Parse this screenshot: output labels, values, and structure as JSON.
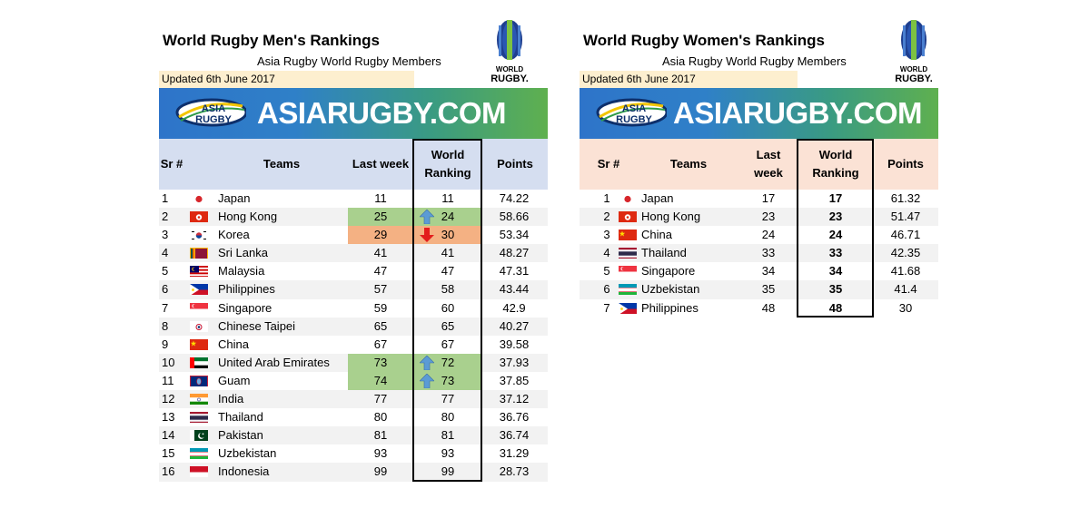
{
  "men": {
    "title": "World Rugby Men's Rankings",
    "subtitle": "Asia Rugby  World Rugby Members",
    "updated": "Updated  6th June 2017",
    "logo_text_1": "WORLD",
    "logo_text_2": "RUGBY.",
    "banner_logo_1": "ASIA",
    "banner_logo_2": "RUGBY",
    "banner_site": "ASIARUGBY.COM",
    "headers": {
      "sr": "Sr #",
      "teams": "Teams",
      "last_week": "Last week",
      "world_ranking_1": "World",
      "world_ranking_2": "Ranking",
      "points": "Points"
    },
    "rows": [
      {
        "sr": "1",
        "flag": "japan-flag",
        "team": "Japan",
        "last": "11",
        "rank": "11",
        "points": "74.22",
        "trend": ""
      },
      {
        "sr": "2",
        "flag": "hong-kong-flag",
        "team": "Hong Kong",
        "last": "25",
        "rank": "24",
        "points": "58.66",
        "trend": "up"
      },
      {
        "sr": "3",
        "flag": "korea-flag",
        "team": "Korea",
        "last": "29",
        "rank": "30",
        "points": "53.34",
        "trend": "down"
      },
      {
        "sr": "4",
        "flag": "sri-lanka-flag",
        "team": "Sri Lanka",
        "last": "41",
        "rank": "41",
        "points": "48.27",
        "trend": ""
      },
      {
        "sr": "5",
        "flag": "malaysia-flag",
        "team": "Malaysia",
        "last": "47",
        "rank": "47",
        "points": "47.31",
        "trend": ""
      },
      {
        "sr": "6",
        "flag": "philippines-flag",
        "team": "Philippines",
        "last": "57",
        "rank": "58",
        "points": "43.44",
        "trend": ""
      },
      {
        "sr": "7",
        "flag": "singapore-flag",
        "team": "Singapore",
        "last": "59",
        "rank": "60",
        "points": "42.9",
        "trend": ""
      },
      {
        "sr": "8",
        "flag": "chinese-taipei-flag",
        "team": "Chinese Taipei",
        "last": "65",
        "rank": "65",
        "points": "40.27",
        "trend": ""
      },
      {
        "sr": "9",
        "flag": "china-flag",
        "team": "China",
        "last": "67",
        "rank": "67",
        "points": "39.58",
        "trend": ""
      },
      {
        "sr": "10",
        "flag": "uae-flag",
        "team": "United Arab Emirates",
        "last": "73",
        "rank": "72",
        "points": "37.93",
        "trend": "up"
      },
      {
        "sr": "11",
        "flag": "guam-flag",
        "team": "Guam",
        "last": "74",
        "rank": "73",
        "points": "37.85",
        "trend": "up"
      },
      {
        "sr": "12",
        "flag": "india-flag",
        "team": "India",
        "last": "77",
        "rank": "77",
        "points": "37.12",
        "trend": ""
      },
      {
        "sr": "13",
        "flag": "thailand-flag",
        "team": "Thailand",
        "last": "80",
        "rank": "80",
        "points": "36.76",
        "trend": ""
      },
      {
        "sr": "14",
        "flag": "pakistan-flag",
        "team": "Pakistan",
        "last": "81",
        "rank": "81",
        "points": "36.74",
        "trend": ""
      },
      {
        "sr": "15",
        "flag": "uzbekistan-flag",
        "team": "Uzbekistan",
        "last": "93",
        "rank": "93",
        "points": "31.29",
        "trend": ""
      },
      {
        "sr": "16",
        "flag": "indonesia-flag",
        "team": "Indonesia",
        "last": "99",
        "rank": "99",
        "points": "28.73",
        "trend": ""
      }
    ]
  },
  "women": {
    "title": "World Rugby Women's Rankings",
    "subtitle": "Asia Rugby  World Rugby Members",
    "updated": "Updated  6th June 2017",
    "logo_text_1": "WORLD",
    "logo_text_2": "RUGBY.",
    "banner_logo_1": "ASIA",
    "banner_logo_2": "RUGBY",
    "banner_site": "ASIARUGBY.COM",
    "headers": {
      "sr": "Sr #",
      "teams": "Teams",
      "last_week_1": "Last",
      "last_week_2": "week",
      "world_ranking_1": "World",
      "world_ranking_2": "Ranking",
      "points": "Points"
    },
    "rows": [
      {
        "sr": "1",
        "flag": "japan-flag",
        "team": "Japan",
        "last": "17",
        "rank": "17",
        "points": "61.32"
      },
      {
        "sr": "2",
        "flag": "hong-kong-flag",
        "team": "Hong Kong",
        "last": "23",
        "rank": "23",
        "points": "51.47"
      },
      {
        "sr": "3",
        "flag": "china-flag",
        "team": "China",
        "last": "24",
        "rank": "24",
        "points": "46.71"
      },
      {
        "sr": "4",
        "flag": "thailand-flag",
        "team": "Thailand",
        "last": "33",
        "rank": "33",
        "points": "42.35"
      },
      {
        "sr": "5",
        "flag": "singapore-flag",
        "team": "Singapore",
        "last": "34",
        "rank": "34",
        "points": "41.68"
      },
      {
        "sr": "6",
        "flag": "uzbekistan-flag",
        "team": "Uzbekistan",
        "last": "35",
        "rank": "35",
        "points": "41.4"
      },
      {
        "sr": "7",
        "flag": "philippines-flag",
        "team": "Philippines",
        "last": "48",
        "rank": "48",
        "points": "30"
      }
    ]
  },
  "colors": {
    "header_men": "#d5def0",
    "header_women": "#fbe2d5",
    "updated_bg": "#fdefcf",
    "improved": "#a9d08e",
    "declined": "#f4b183",
    "up_arrow": "#5b9bd5",
    "down_arrow": "#e31c1c"
  }
}
